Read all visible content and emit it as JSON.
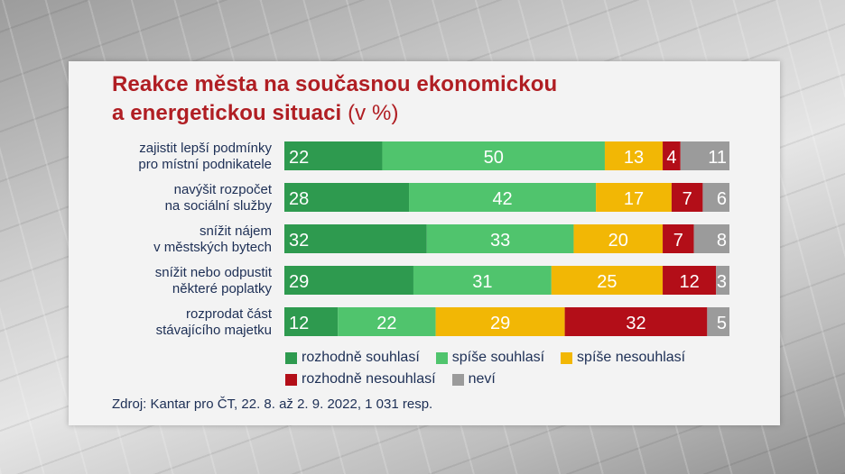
{
  "chart_data": {
    "type": "bar",
    "orientation": "horizontal",
    "stacked": true,
    "title_line1": "Reakce města na současnou ekonomickou",
    "title_line2": "a energetickou situaci",
    "title_unit": "(v %)",
    "categories": [
      [
        "zajistit lepší podmínky",
        "pro místní podnikatele"
      ],
      [
        "navýšit rozpočet",
        "na sociální služby"
      ],
      [
        "snížit nájem",
        "v městských bytech"
      ],
      [
        "snížit nebo odpustit",
        "některé poplatky"
      ],
      [
        "rozprodat část",
        "stávajícího majetku"
      ]
    ],
    "series": [
      {
        "name": "rozhodně souhlasí",
        "color": "#2e9a4f",
        "values": [
          22,
          28,
          32,
          29,
          12
        ]
      },
      {
        "name": "spíše souhlasí",
        "color": "#50c46d",
        "values": [
          50,
          42,
          33,
          31,
          22
        ]
      },
      {
        "name": "spíše nesouhlasí",
        "color": "#f2b705",
        "values": [
          13,
          17,
          20,
          25,
          29
        ]
      },
      {
        "name": "rozhodně nesouhlasí",
        "color": "#b30e18",
        "values": [
          4,
          7,
          7,
          12,
          32
        ]
      },
      {
        "name": "neví",
        "color": "#9b9b9b",
        "values": [
          11,
          6,
          8,
          3,
          5
        ]
      }
    ],
    "xlim": [
      0,
      100
    ],
    "legend_position": "bottom"
  },
  "source": "Zdroj: Kantar pro ČT, 22. 8. až 2. 9. 2022, 1 031 resp."
}
